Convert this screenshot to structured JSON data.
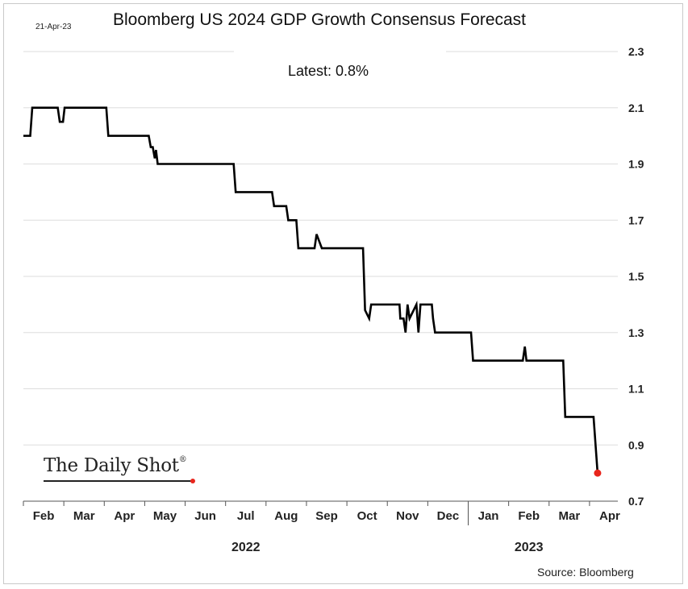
{
  "chart_data": {
    "type": "line",
    "title": "Bloomberg US 2024 GDP Growth Consensus Forecast",
    "date_stamp": "21-Apr-23",
    "annotation": "Latest:  0.8%",
    "source": "Source: Bloomberg",
    "brand": "The Daily Shot",
    "brand_mark": "®",
    "ylim": [
      0.7,
      2.3
    ],
    "yticks": [
      0.7,
      0.9,
      1.1,
      1.3,
      1.5,
      1.7,
      1.9,
      2.1,
      2.3
    ],
    "ytick_labels": [
      "0.7",
      "0.9",
      "1.1",
      "1.3",
      "1.5",
      "1.7",
      "1.9",
      "2.1",
      "2.3"
    ],
    "xlim": [
      0,
      14.7
    ],
    "month_labels": [
      "Feb",
      "Mar",
      "Apr",
      "May",
      "Jun",
      "Jul",
      "Aug",
      "Sep",
      "Oct",
      "Nov",
      "Dec",
      "Jan",
      "Feb",
      "Mar",
      "Apr"
    ],
    "years": [
      {
        "label": "2022",
        "center": 5.5
      },
      {
        "label": "2023",
        "center": 12.5
      }
    ],
    "year_divider": 11.0,
    "series": [
      {
        "name": "US 2024 GDP Growth Consensus Forecast",
        "color": "#000000",
        "x": [
          0.0,
          0.17,
          0.22,
          0.85,
          0.9,
          0.98,
          1.02,
          2.05,
          2.1,
          3.1,
          3.15,
          3.2,
          3.25,
          3.28,
          3.32,
          3.37,
          5.2,
          5.25,
          6.15,
          6.2,
          6.5,
          6.55,
          6.75,
          6.8,
          7.2,
          7.25,
          7.38,
          7.42,
          7.46,
          8.4,
          8.45,
          8.55,
          8.6,
          9.3,
          9.32,
          9.4,
          9.45,
          9.5,
          9.55,
          9.72,
          9.77,
          9.82,
          9.86,
          10.1,
          10.13,
          10.18,
          10.24,
          11.07,
          11.12,
          12.35,
          12.4,
          12.44,
          13.35,
          13.4,
          14.1,
          14.2
        ],
        "y": [
          2.0,
          2.0,
          2.1,
          2.1,
          2.05,
          2.05,
          2.1,
          2.1,
          2.0,
          2.0,
          1.96,
          1.96,
          1.92,
          1.95,
          1.9,
          1.9,
          1.9,
          1.8,
          1.8,
          1.75,
          1.75,
          1.7,
          1.7,
          1.6,
          1.6,
          1.65,
          1.6,
          1.6,
          1.6,
          1.6,
          1.38,
          1.35,
          1.4,
          1.4,
          1.35,
          1.35,
          1.3,
          1.4,
          1.35,
          1.4,
          1.3,
          1.4,
          1.4,
          1.4,
          1.35,
          1.3,
          1.3,
          1.3,
          1.2,
          1.2,
          1.25,
          1.2,
          1.2,
          1.0,
          1.0,
          0.8
        ]
      }
    ],
    "latest_point": {
      "x": 14.2,
      "y": 0.8,
      "color": "#e8261d"
    }
  }
}
